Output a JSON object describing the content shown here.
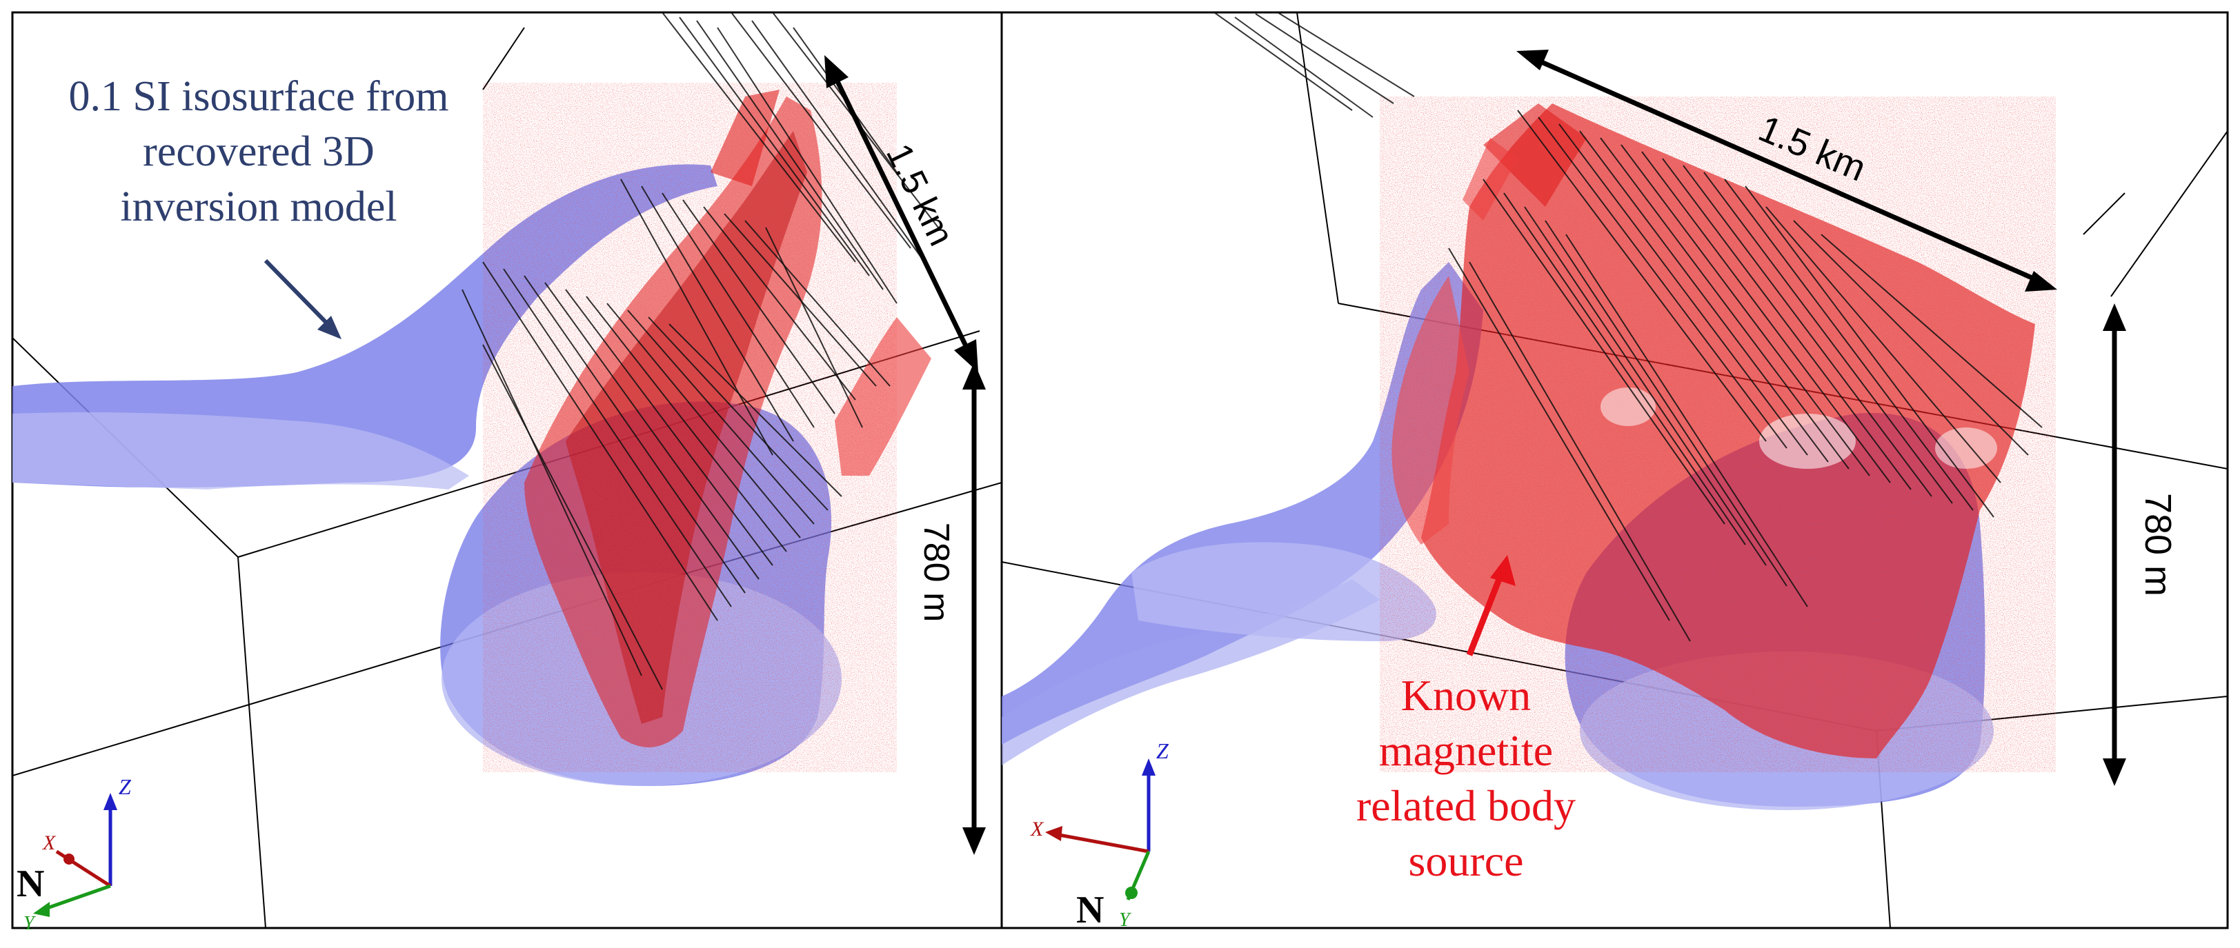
{
  "panels": [
    {
      "name": "left",
      "annotation_lines": [
        "0.1 SI isosurface from",
        "recovered 3D",
        "inversion  model"
      ],
      "annotation_color": "#2e3f6e",
      "length_label": "1.5 km",
      "depth_label": "780 m",
      "axes": {
        "z": "Z",
        "x": "X",
        "y": "Y",
        "north": "N"
      }
    },
    {
      "name": "right",
      "annotation_lines": [
        "Known",
        "magnetite",
        "related body",
        "source"
      ],
      "annotation_color": "#e8121b",
      "length_label": "1.5 km",
      "depth_label": "780 m",
      "axes": {
        "z": "Z",
        "x": "X",
        "y": "Y",
        "north": "N"
      }
    }
  ],
  "colors": {
    "isosurface_blue": "#6f74e8",
    "magnetite_red": "#e01a1a",
    "drillhole": "#111111",
    "frame": "#000000",
    "axis_z": "#1f1fc8",
    "axis_x": "#b01010",
    "axis_y": "#1a9a1a"
  }
}
